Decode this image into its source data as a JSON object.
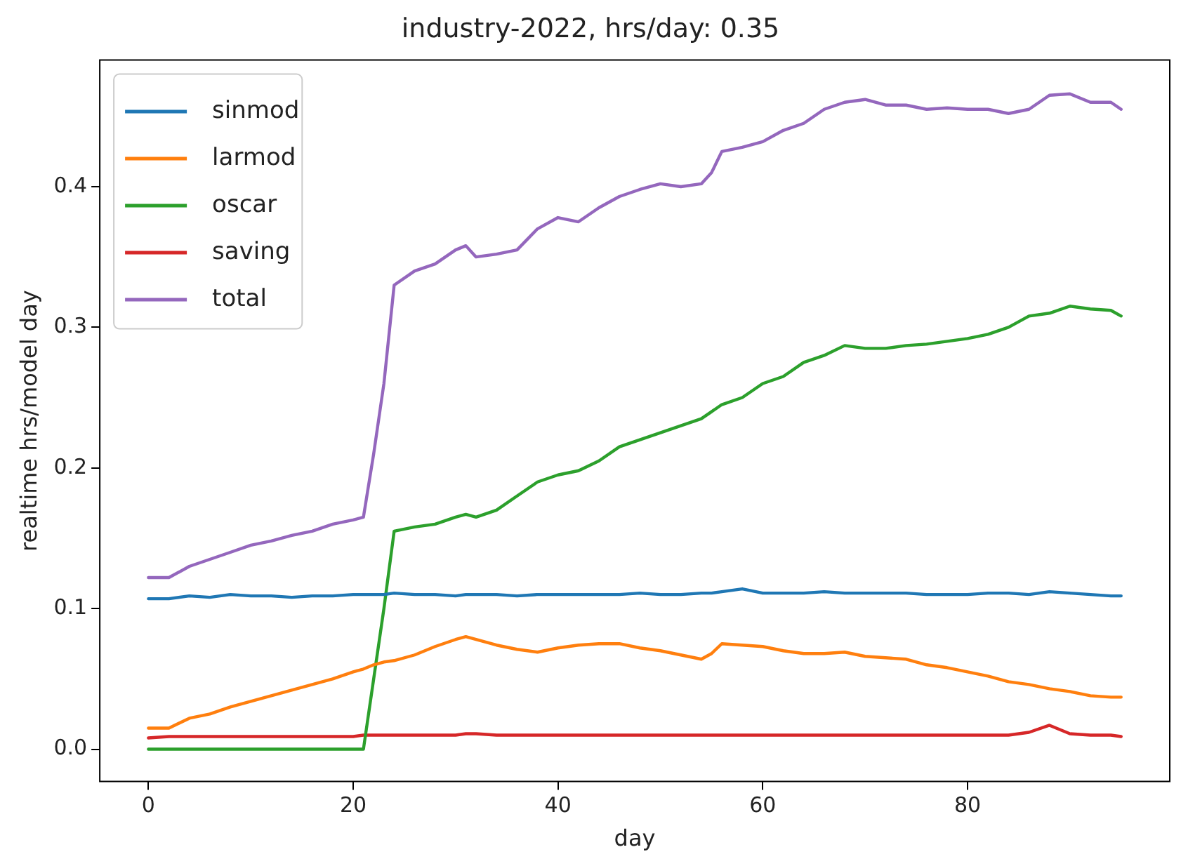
{
  "chart_data": {
    "type": "line",
    "title": "industry-2022, hrs/day: 0.35",
    "xlabel": "day",
    "ylabel": "realtime hrs/model day",
    "x": [
      0,
      2,
      4,
      6,
      8,
      10,
      12,
      14,
      16,
      18,
      20,
      21,
      22,
      23,
      24,
      26,
      28,
      30,
      31,
      32,
      34,
      36,
      38,
      40,
      42,
      44,
      46,
      48,
      50,
      52,
      54,
      55,
      56,
      58,
      60,
      62,
      64,
      66,
      68,
      70,
      72,
      74,
      76,
      78,
      80,
      82,
      84,
      86,
      88,
      90,
      92,
      94,
      95
    ],
    "series": [
      {
        "name": "sinmod",
        "color": "#1f77b4",
        "values": [
          0.107,
          0.107,
          0.109,
          0.108,
          0.11,
          0.109,
          0.109,
          0.108,
          0.109,
          0.109,
          0.11,
          0.11,
          0.11,
          0.11,
          0.111,
          0.11,
          0.11,
          0.109,
          0.11,
          0.11,
          0.11,
          0.109,
          0.11,
          0.11,
          0.11,
          0.11,
          0.11,
          0.111,
          0.11,
          0.11,
          0.111,
          0.111,
          0.112,
          0.114,
          0.111,
          0.111,
          0.111,
          0.112,
          0.111,
          0.111,
          0.111,
          0.111,
          0.11,
          0.11,
          0.11,
          0.111,
          0.111,
          0.11,
          0.112,
          0.111,
          0.11,
          0.109,
          0.109
        ]
      },
      {
        "name": "larmod",
        "color": "#ff7f0e",
        "values": [
          0.015,
          0.015,
          0.022,
          0.025,
          0.03,
          0.034,
          0.038,
          0.042,
          0.046,
          0.05,
          0.055,
          0.057,
          0.06,
          0.062,
          0.063,
          0.067,
          0.073,
          0.078,
          0.08,
          0.078,
          0.074,
          0.071,
          0.069,
          0.072,
          0.074,
          0.075,
          0.075,
          0.072,
          0.07,
          0.067,
          0.064,
          0.068,
          0.075,
          0.074,
          0.073,
          0.07,
          0.068,
          0.068,
          0.069,
          0.066,
          0.065,
          0.064,
          0.06,
          0.058,
          0.055,
          0.052,
          0.048,
          0.046,
          0.043,
          0.041,
          0.038,
          0.037,
          0.037
        ]
      },
      {
        "name": "oscar",
        "color": "#2ca02c",
        "values": [
          0,
          0,
          0,
          0,
          0,
          0,
          0,
          0,
          0,
          0,
          0,
          0,
          0.05,
          0.1,
          0.155,
          0.158,
          0.16,
          0.165,
          0.167,
          0.165,
          0.17,
          0.18,
          0.19,
          0.195,
          0.198,
          0.205,
          0.215,
          0.22,
          0.225,
          0.23,
          0.235,
          0.24,
          0.245,
          0.25,
          0.26,
          0.265,
          0.275,
          0.28,
          0.287,
          0.285,
          0.285,
          0.287,
          0.288,
          0.29,
          0.292,
          0.295,
          0.3,
          0.308,
          0.31,
          0.315,
          0.313,
          0.312,
          0.308
        ]
      },
      {
        "name": "saving",
        "color": "#d62728",
        "values": [
          0.008,
          0.009,
          0.009,
          0.009,
          0.009,
          0.009,
          0.009,
          0.009,
          0.009,
          0.009,
          0.009,
          0.01,
          0.01,
          0.01,
          0.01,
          0.01,
          0.01,
          0.01,
          0.011,
          0.011,
          0.01,
          0.01,
          0.01,
          0.01,
          0.01,
          0.01,
          0.01,
          0.01,
          0.01,
          0.01,
          0.01,
          0.01,
          0.01,
          0.01,
          0.01,
          0.01,
          0.01,
          0.01,
          0.01,
          0.01,
          0.01,
          0.01,
          0.01,
          0.01,
          0.01,
          0.01,
          0.01,
          0.012,
          0.017,
          0.011,
          0.01,
          0.01,
          0.009
        ]
      },
      {
        "name": "total",
        "color": "#9467bd",
        "values": [
          0.122,
          0.122,
          0.13,
          0.135,
          0.14,
          0.145,
          0.148,
          0.152,
          0.155,
          0.16,
          0.163,
          0.165,
          0.21,
          0.26,
          0.33,
          0.34,
          0.345,
          0.355,
          0.358,
          0.35,
          0.352,
          0.355,
          0.37,
          0.378,
          0.375,
          0.385,
          0.393,
          0.398,
          0.402,
          0.4,
          0.402,
          0.41,
          0.425,
          0.428,
          0.432,
          0.44,
          0.445,
          0.455,
          0.46,
          0.462,
          0.458,
          0.458,
          0.455,
          0.456,
          0.455,
          0.455,
          0.452,
          0.455,
          0.465,
          0.466,
          0.46,
          0.46,
          0.455
        ]
      }
    ],
    "xlim": [
      -4.75,
      99.75
    ],
    "xticks": [
      0,
      20,
      40,
      60,
      80
    ],
    "ylim": [
      -0.023,
      0.49
    ],
    "yticks": [
      {
        "value": 0,
        "label": "0.0"
      },
      {
        "value": 0.1,
        "label": "0.1"
      },
      {
        "value": 0.2,
        "label": "0.2"
      },
      {
        "value": 0.3,
        "label": "0.3"
      },
      {
        "value": 0.4,
        "label": "0.4"
      }
    ],
    "grid": false,
    "legend": "top left",
    "marker": "none",
    "line_style": "solid"
  }
}
